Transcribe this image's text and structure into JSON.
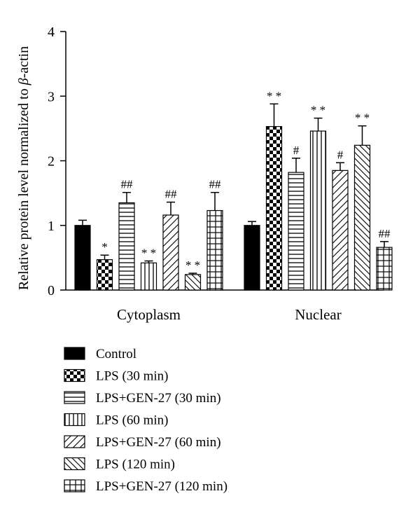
{
  "chart_data": {
    "type": "bar",
    "ylabel_prefix": "Relative protein level normalized to ",
    "ylabel_symbol": "β",
    "ylabel_suffix": "-actin",
    "ylim": [
      0,
      4
    ],
    "yticks": [
      "0",
      "1",
      "2",
      "3",
      "4"
    ],
    "grid": false,
    "legend_position": "bottom",
    "categories": [
      "Cytoplasm",
      "Nuclear"
    ],
    "series": [
      {
        "name": "Control",
        "pattern": "solid",
        "values": [
          1.0,
          1.0
        ],
        "errors": [
          0.08,
          0.06
        ],
        "annotations": [
          "",
          ""
        ]
      },
      {
        "name": "LPS (30 min)",
        "pattern": "checker",
        "values": [
          0.47,
          2.53
        ],
        "errors": [
          0.07,
          0.35
        ],
        "annotations": [
          "*",
          "* *"
        ]
      },
      {
        "name": "LPS+GEN-27 (30 min)",
        "pattern": "hlines",
        "values": [
          1.35,
          1.82
        ],
        "errors": [
          0.16,
          0.22
        ],
        "annotations": [
          "##",
          "#"
        ]
      },
      {
        "name": "LPS (60 min)",
        "pattern": "vlines",
        "values": [
          0.42,
          2.46
        ],
        "errors": [
          0.03,
          0.2
        ],
        "annotations": [
          "* *",
          "* *"
        ]
      },
      {
        "name": "LPS+GEN-27 (60 min)",
        "pattern": "diag-up",
        "values": [
          1.16,
          1.85
        ],
        "errors": [
          0.2,
          0.12
        ],
        "annotations": [
          "##",
          "#"
        ]
      },
      {
        "name": "LPS (120 min)",
        "pattern": "diag-down",
        "values": [
          0.24,
          2.24
        ],
        "errors": [
          0.02,
          0.3
        ],
        "annotations": [
          "* *",
          "* *"
        ]
      },
      {
        "name": "LPS+GEN-27 (120 min)",
        "pattern": "grid",
        "values": [
          1.23,
          0.66
        ],
        "errors": [
          0.28,
          0.09
        ],
        "annotations": [
          "##",
          "##"
        ]
      }
    ]
  }
}
